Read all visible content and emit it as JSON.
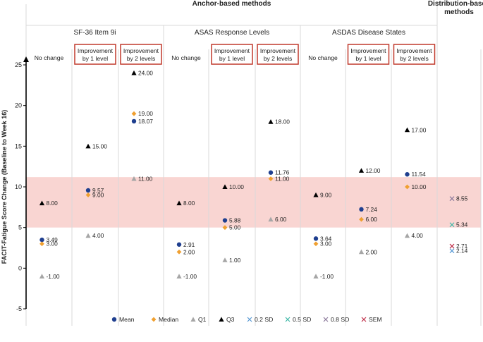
{
  "chart_data": {
    "type": "scatter",
    "ylabel": "FACIT-Fatigue Score Change (Baseline to Week 16)",
    "ylim": [
      -5,
      25
    ],
    "yticks": [
      "-5",
      "0",
      "5",
      "10",
      "15",
      "20",
      "25"
    ],
    "grid": false,
    "legend_position": "bottom",
    "shaded_band": [
      5.0,
      11.2
    ],
    "groups": [
      {
        "label": "Anchor-based methods",
        "subgroups": [
          {
            "label": "SF-36 Item 9i",
            "columns": [
              0,
              1,
              2
            ]
          },
          {
            "label": "ASAS Response Levels",
            "columns": [
              3,
              4,
              5
            ]
          },
          {
            "label": "ASDAS Disease States",
            "columns": [
              6,
              7,
              8
            ]
          }
        ]
      },
      {
        "label": "Distribution-based methods",
        "columns": [
          9
        ]
      }
    ],
    "columns": [
      {
        "label": "No change",
        "boxed": false
      },
      {
        "label": "Improvement by 1 level",
        "boxed": true
      },
      {
        "label": "Improvement by 2 levels",
        "boxed": true
      },
      {
        "label": "No change",
        "boxed": false
      },
      {
        "label": "Improvement by 1 level",
        "boxed": true
      },
      {
        "label": "Improvement by 2 levels",
        "boxed": true
      },
      {
        "label": "No change",
        "boxed": false
      },
      {
        "label": "Improvement by 1 level",
        "boxed": true
      },
      {
        "label": "Improvement by 2 levels",
        "boxed": true
      },
      {
        "label": "",
        "boxed": false
      }
    ],
    "series": [
      {
        "name": "Mean",
        "marker": "circle",
        "color": "#1f3f8f",
        "points": [
          {
            "col": 0,
            "y": 3.49,
            "label": "3.49"
          },
          {
            "col": 2,
            "y": 18.07,
            "label": "18.07"
          },
          {
            "col": 1,
            "y": 9.57,
            "label": "9.57"
          },
          {
            "col": 3,
            "y": 2.91,
            "label": "2.91"
          },
          {
            "col": 4,
            "y": 5.88,
            "label": "5.88"
          },
          {
            "col": 5,
            "y": 11.76,
            "label": "11.76"
          },
          {
            "col": 6,
            "y": 3.64,
            "label": "3.64"
          },
          {
            "col": 7,
            "y": 7.24,
            "label": "7.24"
          },
          {
            "col": 8,
            "y": 11.54,
            "label": "11.54"
          }
        ]
      },
      {
        "name": "Median",
        "marker": "diamond",
        "color": "#f0a030",
        "points": [
          {
            "col": 0,
            "y": 3.0,
            "label": "3.00"
          },
          {
            "col": 1,
            "y": 9.0,
            "label": "9.00"
          },
          {
            "col": 2,
            "y": 19.0,
            "label": "19.00"
          },
          {
            "col": 3,
            "y": 2.0,
            "label": "2.00"
          },
          {
            "col": 4,
            "y": 5.0,
            "label": "5.00"
          },
          {
            "col": 5,
            "y": 11.0,
            "label": "11.00"
          },
          {
            "col": 6,
            "y": 3.0,
            "label": "3.00"
          },
          {
            "col": 7,
            "y": 6.0,
            "label": "6.00"
          },
          {
            "col": 8,
            "y": 10.0,
            "label": "10.00"
          }
        ]
      },
      {
        "name": "Q1",
        "marker": "triangle",
        "color": "#a6a6a6",
        "points": [
          {
            "col": 0,
            "y": -1.0,
            "label": "-1.00"
          },
          {
            "col": 1,
            "y": 4.0,
            "label": "4.00"
          },
          {
            "col": 2,
            "y": 11.0,
            "label": "11.00"
          },
          {
            "col": 3,
            "y": -1.0,
            "label": "-1.00"
          },
          {
            "col": 4,
            "y": 1.0,
            "label": "1.00"
          },
          {
            "col": 5,
            "y": 6.0,
            "label": "6.00"
          },
          {
            "col": 6,
            "y": -1.0,
            "label": "-1.00"
          },
          {
            "col": 7,
            "y": 2.0,
            "label": "2.00"
          },
          {
            "col": 8,
            "y": 4.0,
            "label": "4.00"
          }
        ]
      },
      {
        "name": "Q3",
        "marker": "triangle",
        "color": "#000000",
        "points": [
          {
            "col": 0,
            "y": 8.0,
            "label": "8.00"
          },
          {
            "col": 1,
            "y": 15.0,
            "label": "15.00"
          },
          {
            "col": 2,
            "y": 24.0,
            "label": "24.00"
          },
          {
            "col": 3,
            "y": 8.0,
            "label": "8.00"
          },
          {
            "col": 4,
            "y": 10.0,
            "label": "10.00"
          },
          {
            "col": 5,
            "y": 18.0,
            "label": "18.00"
          },
          {
            "col": 6,
            "y": 9.0,
            "label": "9.00"
          },
          {
            "col": 7,
            "y": 12.0,
            "label": "12.00"
          },
          {
            "col": 8,
            "y": 17.0,
            "label": "17.00"
          }
        ]
      },
      {
        "name": "0.2 SD",
        "marker": "x",
        "color": "#5b9bd5",
        "points": [
          {
            "col": 9,
            "y": 2.14,
            "label": "2.14"
          }
        ]
      },
      {
        "name": "0.5 SD",
        "marker": "x",
        "color": "#3fb8a8",
        "points": [
          {
            "col": 9,
            "y": 5.34,
            "label": "5.34"
          }
        ]
      },
      {
        "name": "0.8 SD",
        "marker": "x",
        "color": "#8c7a9c",
        "points": [
          {
            "col": 9,
            "y": 8.55,
            "label": "8.55"
          }
        ]
      },
      {
        "name": "SEM",
        "marker": "x",
        "color": "#c0304a",
        "points": [
          {
            "col": 9,
            "y": 2.71,
            "label": "2.71"
          }
        ]
      }
    ]
  }
}
